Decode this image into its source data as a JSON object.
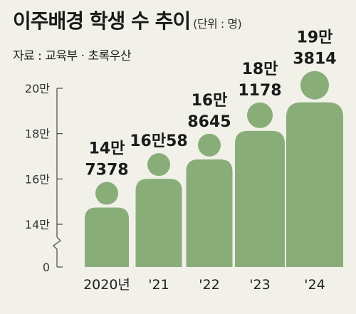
{
  "header": {
    "title": "이주배경 학생 수 추이",
    "unit": "(단위 : 명)",
    "source": "자료 : 교육부 · 초록우산"
  },
  "colors": {
    "figure": "#88ad78",
    "axis": "#555555",
    "background": "#f1f0e9"
  },
  "chart_data": {
    "type": "bar",
    "style": "pictogram (person figures)",
    "categories": [
      "2020년",
      "'21",
      "'22",
      "'23",
      "'24"
    ],
    "values": [
      147378,
      160058,
      168645,
      181178,
      193814
    ],
    "value_labels": [
      [
        "14만",
        "7378"
      ],
      [
        "16만58",
        ""
      ],
      [
        "16만",
        "8645"
      ],
      [
        "18만",
        "1178"
      ],
      [
        "19만",
        "3814"
      ]
    ],
    "y_ticks": [
      {
        "value": 200000,
        "label": "20만"
      },
      {
        "value": 180000,
        "label": "18만"
      },
      {
        "value": 160000,
        "label": "16만"
      },
      {
        "value": 140000,
        "label": "14만"
      },
      {
        "value": 0,
        "label": "0"
      }
    ],
    "ylim": [
      0,
      200000
    ],
    "axis_break": true,
    "grid": false,
    "legend": "none"
  }
}
